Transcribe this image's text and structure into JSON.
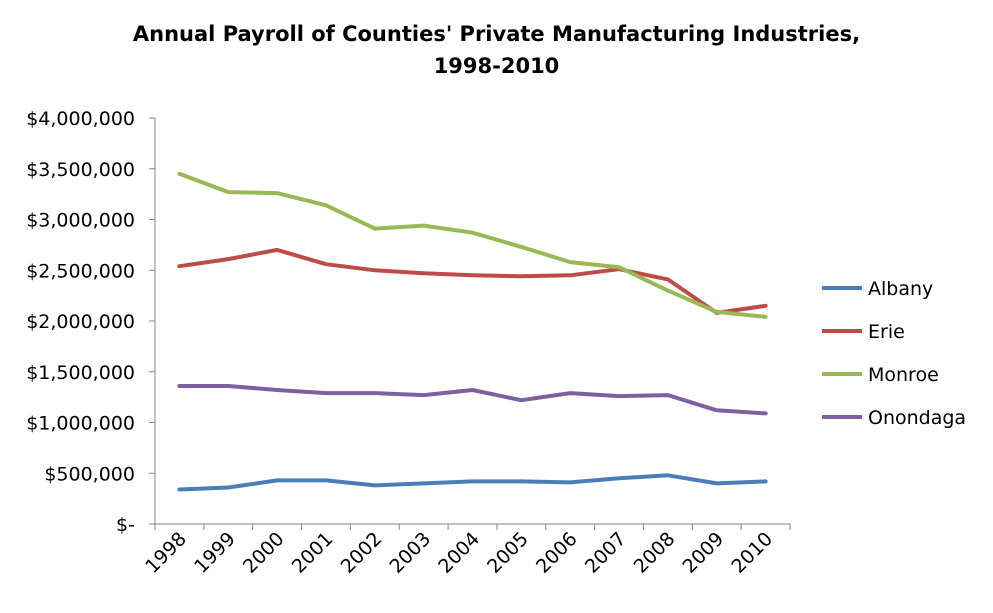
{
  "chart_data": {
    "type": "line",
    "title_lines": [
      "Annual Payroll of Counties' Private Manufacturing Industries,",
      "1998-2010"
    ],
    "xlabel": "",
    "ylabel": "",
    "categories": [
      "1998",
      "1999",
      "2000",
      "2001",
      "2002",
      "2003",
      "2004",
      "2005",
      "2006",
      "2007",
      "2008",
      "2009",
      "2010"
    ],
    "ylim": [
      0,
      4000000
    ],
    "yticks": [
      0,
      500000,
      1000000,
      1500000,
      2000000,
      2500000,
      3000000,
      3500000,
      4000000
    ],
    "ytick_labels": [
      "$-",
      "$500,000",
      "$1,000,000",
      "$1,500,000",
      "$2,000,000",
      "$2,500,000",
      "$3,000,000",
      "$3,500,000",
      "$4,000,000"
    ],
    "grid": false,
    "legend_position": "right",
    "series": [
      {
        "name": "Albany",
        "color": "#4a7ebb",
        "values": [
          340000,
          360000,
          430000,
          430000,
          380000,
          400000,
          420000,
          420000,
          410000,
          450000,
          480000,
          400000,
          420000
        ]
      },
      {
        "name": "Erie",
        "color": "#be4b48",
        "values": [
          2540000,
          2610000,
          2700000,
          2560000,
          2500000,
          2470000,
          2450000,
          2440000,
          2450000,
          2510000,
          2410000,
          2080000,
          2150000
        ]
      },
      {
        "name": "Monroe",
        "color": "#98b954",
        "values": [
          3450000,
          3270000,
          3260000,
          3140000,
          2910000,
          2940000,
          2870000,
          2730000,
          2580000,
          2530000,
          2300000,
          2090000,
          2040000
        ]
      },
      {
        "name": "Onondaga",
        "color": "#7d60a0",
        "values": [
          1360000,
          1360000,
          1320000,
          1290000,
          1290000,
          1270000,
          1320000,
          1220000,
          1290000,
          1260000,
          1270000,
          1120000,
          1090000
        ]
      }
    ]
  }
}
